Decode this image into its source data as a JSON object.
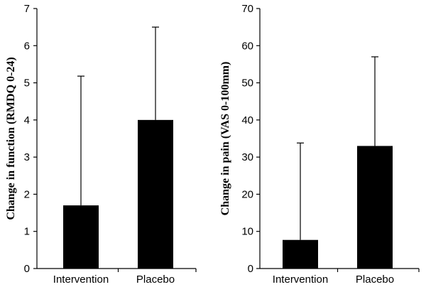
{
  "chart_data": [
    {
      "type": "bar",
      "categories": [
        "Intervention",
        "Placebo"
      ],
      "values": [
        1.7,
        4.0
      ],
      "error_upper": [
        5.18,
        6.5
      ],
      "title": "",
      "xlabel": "",
      "ylabel": "Change in function  (RMDQ 0-24)",
      "ylim": [
        0,
        7
      ],
      "yticks": [
        0,
        1,
        2,
        3,
        4,
        5,
        6,
        7
      ],
      "grid": false,
      "bar_color": "#000000"
    },
    {
      "type": "bar",
      "categories": [
        "Intervention",
        "Placebo"
      ],
      "values": [
        7.7,
        33.0
      ],
      "error_upper": [
        33.8,
        57.0
      ],
      "title": "",
      "xlabel": "",
      "ylabel": "Change in pain (VAS 0-100mm)",
      "ylim": [
        0,
        70
      ],
      "yticks": [
        0,
        10,
        20,
        30,
        40,
        50,
        60,
        70
      ],
      "grid": false,
      "bar_color": "#000000"
    }
  ]
}
